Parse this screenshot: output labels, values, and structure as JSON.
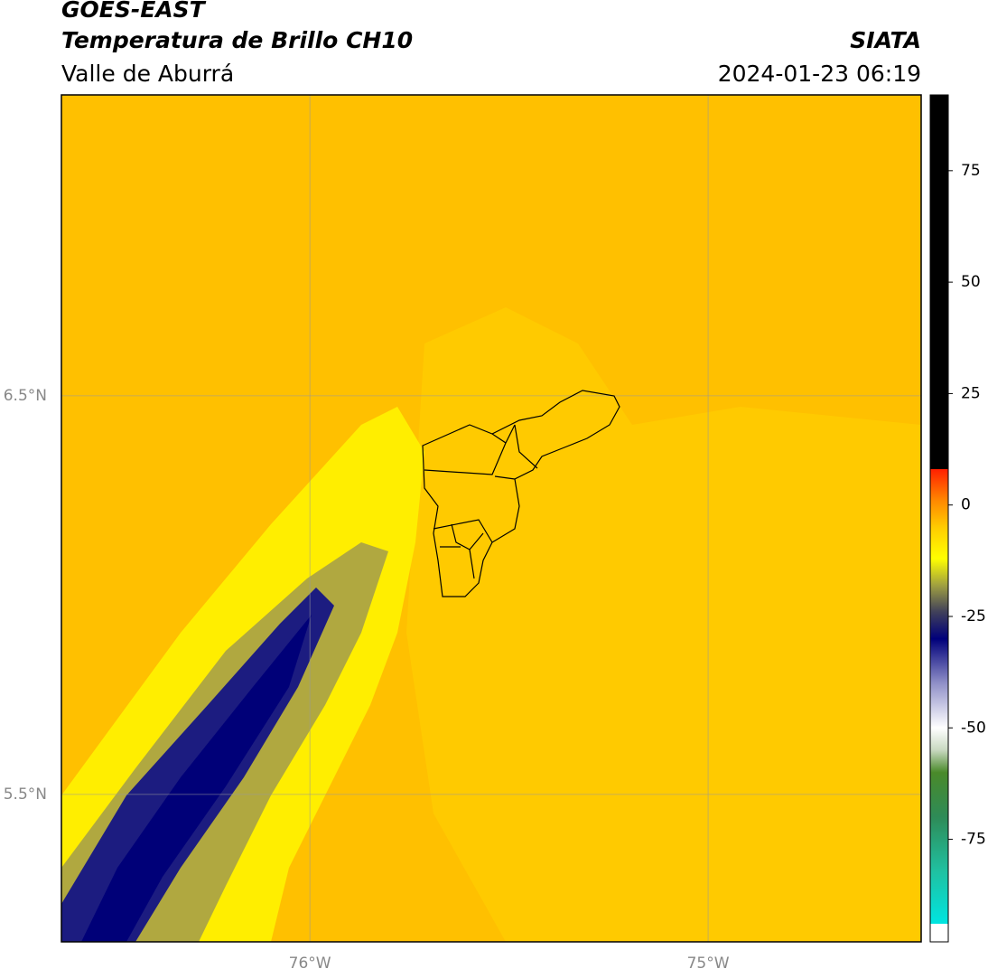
{
  "header": {
    "satellite": "GOES-EAST",
    "product": "Temperatura de Brillo CH10",
    "source": "SIATA",
    "region": "Valle de Aburrá",
    "datetime": "2024-01-23 06:19"
  },
  "map": {
    "xlim": [
      -76.624,
      -74.465
    ],
    "ylim": [
      5.13,
      7.255
    ],
    "xticks": [
      {
        "value": -76,
        "label": "76°W"
      },
      {
        "value": -75,
        "label": "75°W"
      }
    ],
    "yticks": [
      {
        "value": 6.5,
        "label": "6.5°N"
      },
      {
        "value": 5.5,
        "label": "5.5°N"
      }
    ],
    "grid": true
  },
  "colorbar": {
    "lim": [
      -98,
      92
    ],
    "ticks": [
      75,
      50,
      25,
      0,
      -25,
      -50,
      -75
    ],
    "stops": [
      {
        "value": -98,
        "color": "#ffffff"
      },
      {
        "value": -94,
        "color": "#ffffff"
      },
      {
        "value": -93.9,
        "color": "#00e5e0"
      },
      {
        "value": -82,
        "color": "#20c0a0"
      },
      {
        "value": -70,
        "color": "#2e8b57"
      },
      {
        "value": -60,
        "color": "#4a8a2a"
      },
      {
        "value": -55,
        "color": "#c8d8c0"
      },
      {
        "value": -50,
        "color": "#ffffff"
      },
      {
        "value": -40,
        "color": "#9090c8"
      },
      {
        "value": -30,
        "color": "#00007a"
      },
      {
        "value": -24,
        "color": "#40405a"
      },
      {
        "value": -18,
        "color": "#a0a040"
      },
      {
        "value": -12,
        "color": "#ffff00"
      },
      {
        "value": -5,
        "color": "#ffcc00"
      },
      {
        "value": 1,
        "color": "#ff8800"
      },
      {
        "value": 8,
        "color": "#ff2000"
      },
      {
        "value": 8.1,
        "color": "#000000"
      },
      {
        "value": 92,
        "color": "#000000"
      }
    ]
  }
}
